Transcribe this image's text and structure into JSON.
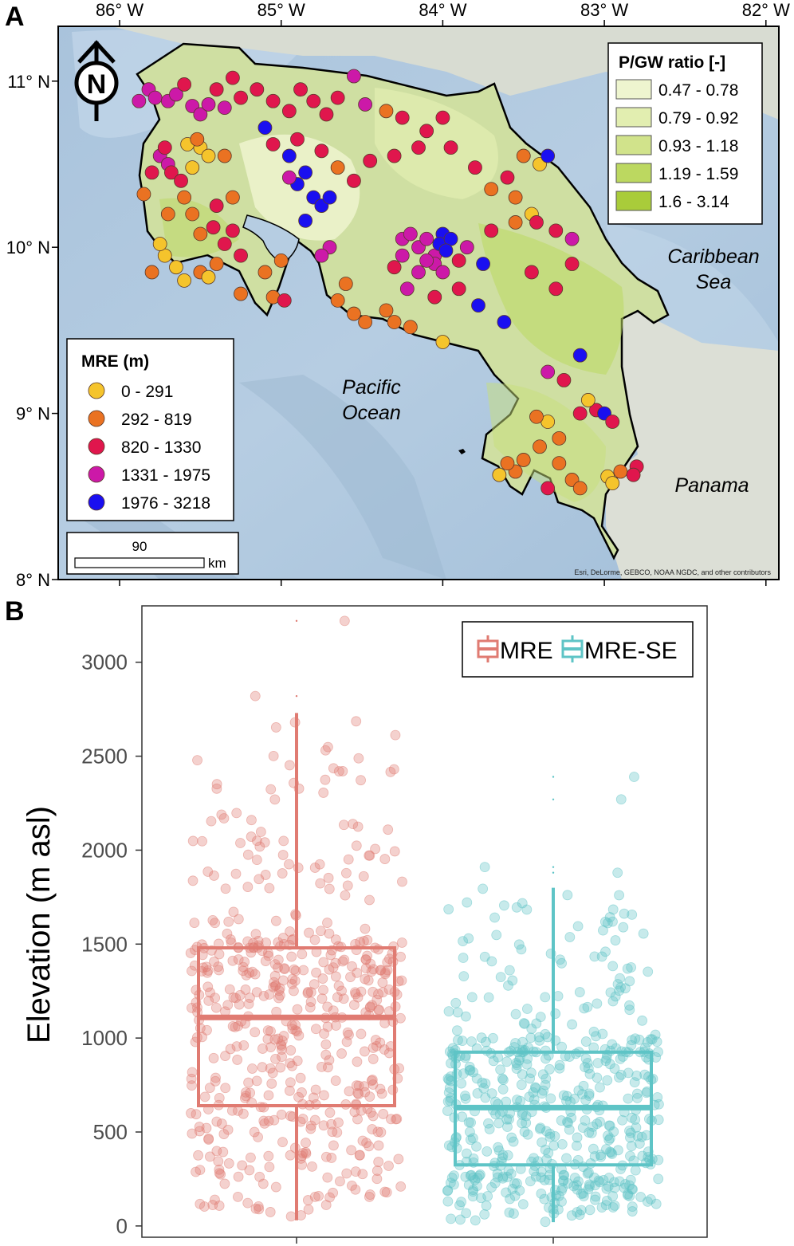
{
  "panel_a": {
    "label": "A",
    "lon_ticks": [
      {
        "lon": -86,
        "label": "86° W"
      },
      {
        "lon": -85,
        "label": "85° W"
      },
      {
        "lon": -84,
        "label": "84° W"
      },
      {
        "lon": -83,
        "label": "83° W"
      },
      {
        "lon": -82,
        "label": "82° W"
      }
    ],
    "lat_ticks": [
      {
        "lat": 11,
        "label": "11° N"
      },
      {
        "lat": 10,
        "label": "10° N"
      },
      {
        "lat": 9,
        "label": "9° N"
      },
      {
        "lat": 8,
        "label": "8° N"
      }
    ],
    "extent": {
      "lon_min": -86.38,
      "lon_max": -81.92,
      "lat_min": 8.0,
      "lat_max": 11.33
    },
    "place_labels": {
      "caribbean": [
        "Caribbean",
        "Sea"
      ],
      "pacific": [
        "Pacific",
        "Ocean"
      ],
      "panama": "Panama"
    },
    "attribution": "Esri, DeLorme, GEBCO, NOAA NGDC, and other contributors",
    "north_arrow": "N",
    "scale_bar": {
      "value": "90",
      "unit": "km"
    },
    "pgw_legend": {
      "title": "P/GW ratio [-]",
      "classes": [
        {
          "label": "0.47 - 0.78",
          "color": "#eef5cf"
        },
        {
          "label": "0.79 - 0.92",
          "color": "#e2eeb0"
        },
        {
          "label": "0.93 - 1.18",
          "color": "#d1e38b"
        },
        {
          "label": "1.19 - 1.59",
          "color": "#bcd860"
        },
        {
          "label": "1.6 - 3.14",
          "color": "#a9cc3a"
        }
      ]
    },
    "mre_legend": {
      "title": "MRE (m)",
      "classes": [
        {
          "label": "0 - 291",
          "color": "#f5c42c"
        },
        {
          "label": "292 - 819",
          "color": "#ea7222"
        },
        {
          "label": "820 - 1330",
          "color": "#e0164d"
        },
        {
          "label": "1331 - 1975",
          "color": "#cc19a8"
        },
        {
          "label": "1976 - 3218",
          "color": "#1a0ff0"
        }
      ]
    },
    "stations": [
      {
        "lon": -85.82,
        "lat": 10.95,
        "c": 3
      },
      {
        "lon": -85.78,
        "lat": 10.9,
        "c": 3
      },
      {
        "lon": -85.7,
        "lat": 10.88,
        "c": 3
      },
      {
        "lon": -85.88,
        "lat": 10.88,
        "c": 3
      },
      {
        "lon": -85.65,
        "lat": 10.92,
        "c": 3
      },
      {
        "lon": -85.55,
        "lat": 10.85,
        "c": 3
      },
      {
        "lon": -85.5,
        "lat": 10.8,
        "c": 3
      },
      {
        "lon": -85.45,
        "lat": 10.86,
        "c": 3
      },
      {
        "lon": -85.6,
        "lat": 10.98,
        "c": 2
      },
      {
        "lon": -85.4,
        "lat": 10.95,
        "c": 2
      },
      {
        "lon": -85.3,
        "lat": 11.02,
        "c": 2
      },
      {
        "lon": -85.25,
        "lat": 10.9,
        "c": 2
      },
      {
        "lon": -85.35,
        "lat": 10.84,
        "c": 3
      },
      {
        "lon": -85.15,
        "lat": 10.95,
        "c": 2
      },
      {
        "lon": -85.05,
        "lat": 10.88,
        "c": 2
      },
      {
        "lon": -84.95,
        "lat": 10.82,
        "c": 2
      },
      {
        "lon": -84.88,
        "lat": 10.95,
        "c": 2
      },
      {
        "lon": -84.8,
        "lat": 10.88,
        "c": 2
      },
      {
        "lon": -84.72,
        "lat": 10.8,
        "c": 2
      },
      {
        "lon": -84.65,
        "lat": 10.9,
        "c": 2
      },
      {
        "lon": -84.55,
        "lat": 11.03,
        "c": 3
      },
      {
        "lon": -84.48,
        "lat": 10.86,
        "c": 3
      },
      {
        "lon": -84.35,
        "lat": 10.82,
        "c": 1
      },
      {
        "lon": -84.25,
        "lat": 10.78,
        "c": 2
      },
      {
        "lon": -84.1,
        "lat": 10.7,
        "c": 2
      },
      {
        "lon": -84.0,
        "lat": 10.78,
        "c": 2
      },
      {
        "lon": -84.15,
        "lat": 10.6,
        "c": 2
      },
      {
        "lon": -84.3,
        "lat": 10.55,
        "c": 2
      },
      {
        "lon": -83.95,
        "lat": 10.6,
        "c": 2
      },
      {
        "lon": -83.8,
        "lat": 10.48,
        "c": 2
      },
      {
        "lon": -83.7,
        "lat": 10.35,
        "c": 1
      },
      {
        "lon": -83.6,
        "lat": 10.42,
        "c": 2
      },
      {
        "lon": -83.55,
        "lat": 10.3,
        "c": 1
      },
      {
        "lon": -83.5,
        "lat": 10.55,
        "c": 1
      },
      {
        "lon": -83.45,
        "lat": 10.2,
        "c": 0
      },
      {
        "lon": -83.4,
        "lat": 10.5,
        "c": 0
      },
      {
        "lon": -83.35,
        "lat": 10.55,
        "c": 4
      },
      {
        "lon": -83.42,
        "lat": 10.15,
        "c": 2
      },
      {
        "lon": -83.3,
        "lat": 10.1,
        "c": 2
      },
      {
        "lon": -83.2,
        "lat": 10.05,
        "c": 3
      },
      {
        "lon": -83.55,
        "lat": 10.15,
        "c": 1
      },
      {
        "lon": -83.7,
        "lat": 10.1,
        "c": 2
      },
      {
        "lon": -85.1,
        "lat": 10.72,
        "c": 4
      },
      {
        "lon": -84.95,
        "lat": 10.55,
        "c": 4
      },
      {
        "lon": -84.85,
        "lat": 10.45,
        "c": 4
      },
      {
        "lon": -84.9,
        "lat": 10.38,
        "c": 4
      },
      {
        "lon": -84.8,
        "lat": 10.3,
        "c": 4
      },
      {
        "lon": -84.75,
        "lat": 10.25,
        "c": 4
      },
      {
        "lon": -84.7,
        "lat": 10.3,
        "c": 4
      },
      {
        "lon": -84.95,
        "lat": 10.42,
        "c": 3
      },
      {
        "lon": -84.85,
        "lat": 10.16,
        "c": 4
      },
      {
        "lon": -85.05,
        "lat": 10.62,
        "c": 2
      },
      {
        "lon": -84.9,
        "lat": 10.65,
        "c": 2
      },
      {
        "lon": -84.75,
        "lat": 10.58,
        "c": 2
      },
      {
        "lon": -84.65,
        "lat": 10.48,
        "c": 1
      },
      {
        "lon": -84.55,
        "lat": 10.4,
        "c": 2
      },
      {
        "lon": -84.45,
        "lat": 10.52,
        "c": 2
      },
      {
        "lon": -84.7,
        "lat": 10.0,
        "c": 3
      },
      {
        "lon": -84.75,
        "lat": 9.95,
        "c": 3
      },
      {
        "lon": -84.6,
        "lat": 9.78,
        "c": 1
      },
      {
        "lon": -84.65,
        "lat": 9.68,
        "c": 1
      },
      {
        "lon": -84.55,
        "lat": 9.6,
        "c": 1
      },
      {
        "lon": -84.48,
        "lat": 9.55,
        "c": 1
      },
      {
        "lon": -84.35,
        "lat": 9.62,
        "c": 1
      },
      {
        "lon": -84.3,
        "lat": 9.55,
        "c": 1
      },
      {
        "lon": -84.2,
        "lat": 9.52,
        "c": 1
      },
      {
        "lon": -84.0,
        "lat": 9.43,
        "c": 0
      },
      {
        "lon": -84.25,
        "lat": 10.05,
        "c": 3
      },
      {
        "lon": -84.2,
        "lat": 10.08,
        "c": 3
      },
      {
        "lon": -84.15,
        "lat": 10.0,
        "c": 3
      },
      {
        "lon": -84.1,
        "lat": 10.05,
        "c": 3
      },
      {
        "lon": -84.05,
        "lat": 9.95,
        "c": 3
      },
      {
        "lon": -84.0,
        "lat": 10.08,
        "c": 4
      },
      {
        "lon": -84.02,
        "lat": 10.02,
        "c": 4
      },
      {
        "lon": -83.95,
        "lat": 10.05,
        "c": 4
      },
      {
        "lon": -83.98,
        "lat": 9.98,
        "c": 4
      },
      {
        "lon": -84.05,
        "lat": 9.9,
        "c": 3
      },
      {
        "lon": -84.1,
        "lat": 9.92,
        "c": 3
      },
      {
        "lon": -84.15,
        "lat": 9.85,
        "c": 3
      },
      {
        "lon": -84.0,
        "lat": 9.85,
        "c": 3
      },
      {
        "lon": -83.9,
        "lat": 9.92,
        "c": 2
      },
      {
        "lon": -83.85,
        "lat": 10.0,
        "c": 3
      },
      {
        "lon": -84.25,
        "lat": 9.95,
        "c": 3
      },
      {
        "lon": -84.3,
        "lat": 9.88,
        "c": 2
      },
      {
        "lon": -84.22,
        "lat": 9.75,
        "c": 3
      },
      {
        "lon": -83.75,
        "lat": 9.9,
        "c": 4
      },
      {
        "lon": -83.78,
        "lat": 9.65,
        "c": 4
      },
      {
        "lon": -83.62,
        "lat": 9.55,
        "c": 4
      },
      {
        "lon": -83.45,
        "lat": 9.85,
        "c": 2
      },
      {
        "lon": -83.3,
        "lat": 9.75,
        "c": 2
      },
      {
        "lon": -83.2,
        "lat": 9.9,
        "c": 2
      },
      {
        "lon": -83.9,
        "lat": 9.75,
        "c": 2
      },
      {
        "lon": -84.05,
        "lat": 9.7,
        "c": 2
      },
      {
        "lon": -83.35,
        "lat": 9.25,
        "c": 3
      },
      {
        "lon": -83.25,
        "lat": 9.2,
        "c": 2
      },
      {
        "lon": -83.15,
        "lat": 9.35,
        "c": 4
      },
      {
        "lon": -83.15,
        "lat": 9.0,
        "c": 2
      },
      {
        "lon": -83.05,
        "lat": 9.02,
        "c": 2
      },
      {
        "lon": -83.0,
        "lat": 9.0,
        "c": 4
      },
      {
        "lon": -82.95,
        "lat": 8.95,
        "c": 2
      },
      {
        "lon": -83.1,
        "lat": 9.08,
        "c": 0
      },
      {
        "lon": -83.35,
        "lat": 8.95,
        "c": 0
      },
      {
        "lon": -83.42,
        "lat": 8.98,
        "c": 1
      },
      {
        "lon": -83.28,
        "lat": 8.85,
        "c": 1
      },
      {
        "lon": -83.4,
        "lat": 8.8,
        "c": 1
      },
      {
        "lon": -83.5,
        "lat": 8.72,
        "c": 1
      },
      {
        "lon": -83.55,
        "lat": 8.65,
        "c": 1
      },
      {
        "lon": -83.6,
        "lat": 8.7,
        "c": 1
      },
      {
        "lon": -83.65,
        "lat": 8.63,
        "c": 0
      },
      {
        "lon": -83.35,
        "lat": 8.55,
        "c": 2
      },
      {
        "lon": -83.2,
        "lat": 8.6,
        "c": 1
      },
      {
        "lon": -83.15,
        "lat": 8.55,
        "c": 1
      },
      {
        "lon": -82.98,
        "lat": 8.62,
        "c": 0
      },
      {
        "lon": -82.9,
        "lat": 8.65,
        "c": 1
      },
      {
        "lon": -82.95,
        "lat": 8.58,
        "c": 0
      },
      {
        "lon": -82.8,
        "lat": 8.68,
        "c": 2
      },
      {
        "lon": -82.82,
        "lat": 8.63,
        "c": 2
      },
      {
        "lon": -83.28,
        "lat": 8.7,
        "c": 1
      },
      {
        "lon": -85.75,
        "lat": 10.55,
        "c": 3
      },
      {
        "lon": -85.7,
        "lat": 10.5,
        "c": 3
      },
      {
        "lon": -85.72,
        "lat": 10.6,
        "c": 2
      },
      {
        "lon": -85.68,
        "lat": 10.45,
        "c": 2
      },
      {
        "lon": -85.8,
        "lat": 10.45,
        "c": 2
      },
      {
        "lon": -85.62,
        "lat": 10.4,
        "c": 2
      },
      {
        "lon": -85.55,
        "lat": 10.48,
        "c": 0
      },
      {
        "lon": -85.5,
        "lat": 10.6,
        "c": 0
      },
      {
        "lon": -85.45,
        "lat": 10.55,
        "c": 0
      },
      {
        "lon": -85.58,
        "lat": 10.62,
        "c": 0
      },
      {
        "lon": -85.52,
        "lat": 10.65,
        "c": 1
      },
      {
        "lon": -85.35,
        "lat": 10.55,
        "c": 1
      },
      {
        "lon": -85.85,
        "lat": 10.32,
        "c": 1
      },
      {
        "lon": -85.7,
        "lat": 10.2,
        "c": 1
      },
      {
        "lon": -85.6,
        "lat": 10.3,
        "c": 1
      },
      {
        "lon": -85.55,
        "lat": 10.2,
        "c": 1
      },
      {
        "lon": -85.5,
        "lat": 10.08,
        "c": 1
      },
      {
        "lon": -85.42,
        "lat": 10.12,
        "c": 2
      },
      {
        "lon": -85.35,
        "lat": 10.02,
        "c": 2
      },
      {
        "lon": -85.3,
        "lat": 10.1,
        "c": 2
      },
      {
        "lon": -85.25,
        "lat": 9.95,
        "c": 2
      },
      {
        "lon": -85.4,
        "lat": 9.9,
        "c": 1
      },
      {
        "lon": -85.5,
        "lat": 9.85,
        "c": 1
      },
      {
        "lon": -85.6,
        "lat": 9.8,
        "c": 0
      },
      {
        "lon": -85.65,
        "lat": 9.88,
        "c": 0
      },
      {
        "lon": -85.72,
        "lat": 9.95,
        "c": 0
      },
      {
        "lon": -85.75,
        "lat": 10.02,
        "c": 0
      },
      {
        "lon": -85.8,
        "lat": 9.85,
        "c": 1
      },
      {
        "lon": -85.45,
        "lat": 9.82,
        "c": 0
      },
      {
        "lon": -85.25,
        "lat": 9.72,
        "c": 1
      },
      {
        "lon": -85.1,
        "lat": 9.85,
        "c": 1
      },
      {
        "lon": -85.05,
        "lat": 9.7,
        "c": 1
      },
      {
        "lon": -84.98,
        "lat": 9.68,
        "c": 2
      },
      {
        "lon": -85.0,
        "lat": 9.92,
        "c": 1
      },
      {
        "lon": -85.4,
        "lat": 10.25,
        "c": 2
      },
      {
        "lon": -85.3,
        "lat": 10.3,
        "c": 1
      }
    ]
  },
  "panel_b": {
    "label": "B",
    "ylabel": "Elevation (m asl)",
    "chart_data": {
      "type": "box",
      "ylabel": "Elevation (m asl)",
      "ylim": [
        -60,
        3300
      ],
      "yticks": [
        0,
        500,
        1000,
        1500,
        2000,
        2500,
        3000
      ],
      "legend_position": "top-right",
      "series": [
        {
          "name": "MRE",
          "color": "#e07b72",
          "min": 30,
          "q1": 640,
          "median": 1110,
          "q3": 1480,
          "max": 2730,
          "outliers": [
            2820,
            3220
          ],
          "n_points": 540
        },
        {
          "name": "MRE-SE",
          "color": "#5ec4c6",
          "min": 20,
          "q1": 325,
          "median": 630,
          "q3": 925,
          "max": 1800,
          "outliers": [
            1880,
            1910,
            2270,
            2390
          ],
          "n_points": 540
        }
      ]
    }
  }
}
